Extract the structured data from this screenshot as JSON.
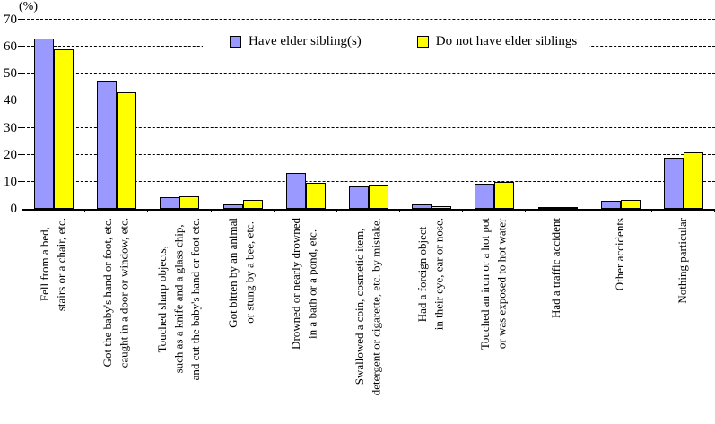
{
  "chart_data": {
    "type": "bar",
    "title": "",
    "unit_label": "(%)",
    "ylim": [
      0,
      70
    ],
    "y_ticks": [
      0,
      10,
      20,
      30,
      40,
      50,
      60,
      70
    ],
    "grid": "horizontal-dashed",
    "legend_position": "top-inside",
    "categories": [
      "Fell from a bed,\nstairs or a chair, etc.",
      "Got the baby's hand or foot, etc.\ncaught in a door or window, etc.",
      "Touched sharp objects,\nsuch as a knife and a glass chip,\nand cut the baby's hand or foot etc.",
      "Got bitten by an animal\nor stung by a bee, etc.",
      "Drowned or nearly drowned\nin a bath or a pond, etc.",
      "Swallowed a coin, cosmetic item,\ndetergent or cigarette, etc. by mistake.",
      "Had a foreign object\nin their eye, ear or nose.",
      "Touched an iron or a hot pot\nor was exposed to hot water",
      "Had a traffic accident",
      "Other accidents",
      "Nothing particular"
    ],
    "series": [
      {
        "name": "Have elder sibling(s)",
        "color": "#9999FF",
        "values": [
          63.0,
          47.4,
          4.3,
          1.8,
          13.2,
          8.2,
          1.5,
          9.3,
          0.3,
          3.0,
          19.0
        ]
      },
      {
        "name": "Do not have elder siblings",
        "color": "#FFFF00",
        "values": [
          59.1,
          43.1,
          4.7,
          3.2,
          9.7,
          8.8,
          1.0,
          9.9,
          0.3,
          3.3,
          21.0
        ]
      }
    ]
  }
}
